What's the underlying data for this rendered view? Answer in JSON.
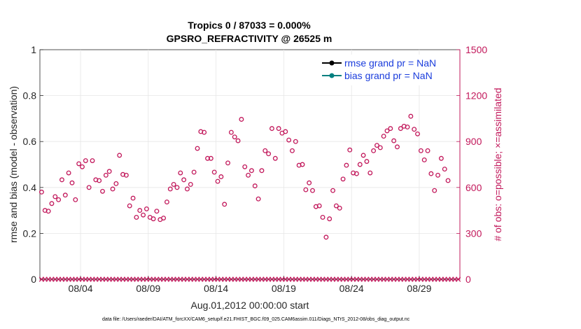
{
  "chart_data": {
    "type": "scatter",
    "title_line1": "Tropics 0 / 87033 = 0.000%",
    "title_line2": "GPSRO_REFRACTIVITY @ 26525 m",
    "ylabel_left": "rmse and bias (model - observation)",
    "ylabel_right": "# of obs: o=possible; ×=assimilated",
    "xlabel": "Aug.01,2012 00:00:00 start",
    "footer": "data file: /Users/raeder/DAI/ATM_forcXX/CAM6_setup/f.e21.FHIST_BGC.f09_025.CAM6assim.011/Diags_NTrS_2012-08/obs_diag_output.nc",
    "ylim_left": [
      0,
      1
    ],
    "ylim_right": [
      0,
      1500
    ],
    "xlim_days": [
      0,
      31
    ],
    "left_ticks": [
      "0",
      "0.2",
      "0.4",
      "0.6",
      "0.8",
      "1"
    ],
    "left_tick_values": [
      0,
      0.2,
      0.4,
      0.6,
      0.8,
      1
    ],
    "right_ticks": [
      "0",
      "300",
      "600",
      "900",
      "1200",
      "1500"
    ],
    "right_tick_values": [
      0,
      300,
      600,
      900,
      1200,
      1500
    ],
    "x_ticks": [
      {
        "label": "08/04",
        "day": 3
      },
      {
        "label": "08/09",
        "day": 8
      },
      {
        "label": "08/14",
        "day": 13
      },
      {
        "label": "08/19",
        "day": 18
      },
      {
        "label": "08/24",
        "day": 23
      },
      {
        "label": "08/29",
        "day": 28
      }
    ],
    "legend": [
      {
        "label": "rmse grand pr = NaN",
        "color": "#000000"
      },
      {
        "label": "bias grand pr = NaN",
        "color": "#008080"
      }
    ],
    "series": [
      {
        "name": "possible obs count",
        "color": "#c2185b",
        "marker": "circle",
        "values": [
          570,
          450,
          445,
          495,
          540,
          520,
          650,
          550,
          695,
          630,
          520,
          755,
          735,
          775,
          600,
          775,
          650,
          645,
          575,
          680,
          705,
          590,
          625,
          810,
          685,
          680,
          480,
          530,
          405,
          450,
          420,
          460,
          405,
          395,
          445,
          390,
          400,
          505,
          590,
          620,
          600,
          695,
          650,
          590,
          620,
          700,
          855,
          965,
          960,
          790,
          790,
          700,
          640,
          670,
          490,
          760,
          960,
          930,
          905,
          1045,
          735,
          680,
          710,
          610,
          525,
          710,
          840,
          820,
          985,
          790,
          985,
          955,
          965,
          910,
          840,
          900,
          745,
          750,
          585,
          630,
          580,
          475,
          480,
          405,
          275,
          395,
          580,
          480,
          465,
          655,
          745,
          845,
          695,
          690,
          750,
          810,
          770,
          695,
          840,
          875,
          860,
          935,
          970,
          985,
          905,
          865,
          985,
          1000,
          995,
          1065,
          980,
          950,
          840,
          780,
          840,
          690,
          580,
          680,
          790,
          720,
          645
        ]
      },
      {
        "name": "assimilated obs count",
        "color": "#c2185b",
        "marker": "x",
        "values": [
          0,
          0,
          0,
          0,
          0,
          0,
          0,
          0,
          0,
          0,
          0,
          0,
          0,
          0,
          0,
          0,
          0,
          0,
          0,
          0,
          0,
          0,
          0,
          0,
          0,
          0,
          0,
          0,
          0,
          0,
          0,
          0,
          0,
          0,
          0,
          0,
          0,
          0,
          0,
          0,
          0,
          0,
          0,
          0,
          0,
          0,
          0,
          0,
          0,
          0,
          0,
          0,
          0,
          0,
          0,
          0,
          0,
          0,
          0,
          0,
          0,
          0,
          0,
          0,
          0,
          0,
          0,
          0,
          0,
          0,
          0,
          0,
          0,
          0,
          0,
          0,
          0,
          0,
          0,
          0,
          0,
          0,
          0,
          0,
          0,
          0,
          0,
          0,
          0,
          0,
          0,
          0,
          0,
          0,
          0,
          0,
          0,
          0,
          0,
          0,
          0,
          0,
          0,
          0,
          0,
          0,
          0,
          0,
          0,
          0,
          0,
          0,
          0,
          0,
          0,
          0,
          0,
          0,
          0,
          0,
          0,
          0,
          0,
          0
        ]
      }
    ],
    "points_per_day": 4
  }
}
